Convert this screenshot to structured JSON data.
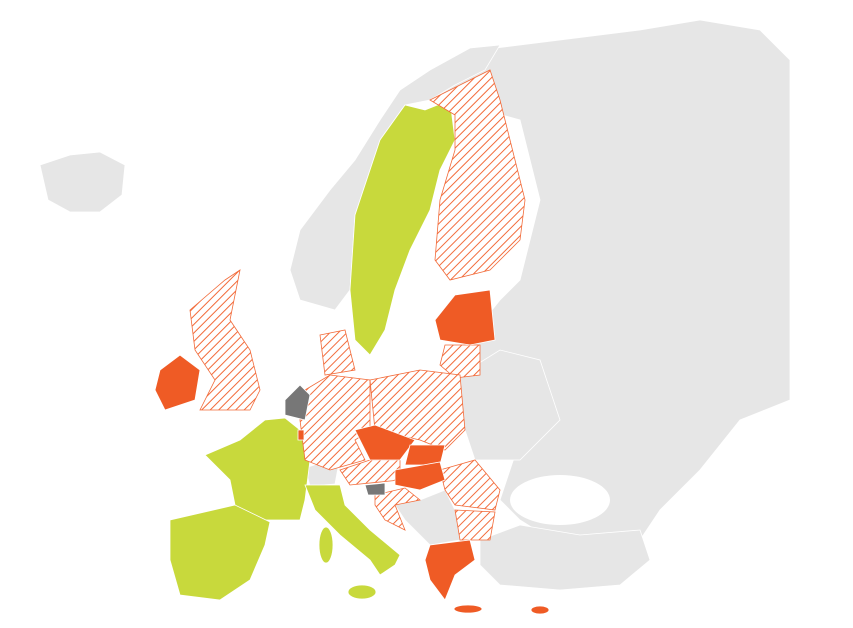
{
  "map": {
    "colors": {
      "background": "#ffffff",
      "land": "#e6e6e6",
      "lime": "#c8d93c",
      "orange": "#ef5b25",
      "hatch": "#f26b3a",
      "dark_gray": "#777777"
    }
  }
}
